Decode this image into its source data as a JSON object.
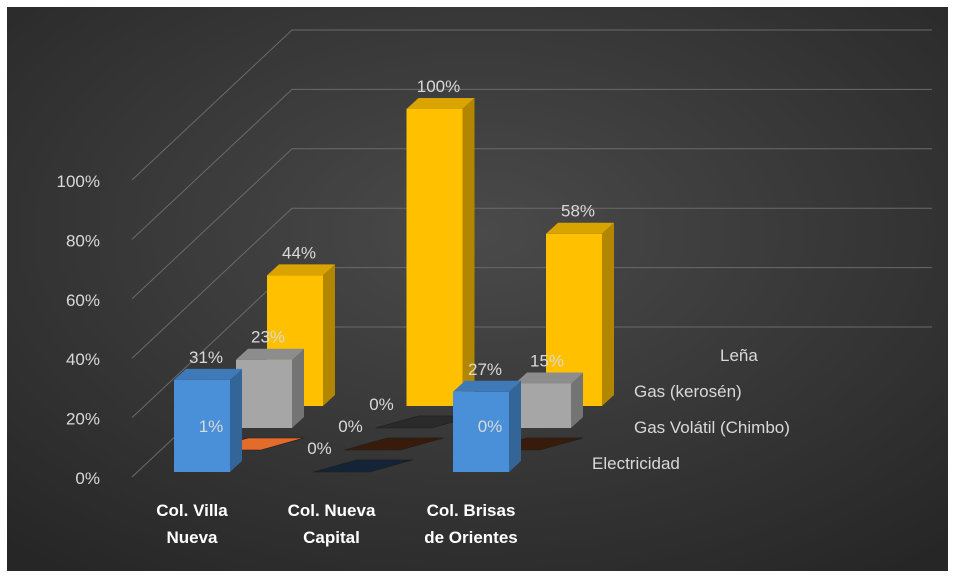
{
  "chart_data": {
    "type": "bar",
    "categories": [
      "Col. Villa Nueva",
      "Col. Nueva Capital",
      "Col. Brisas de Orientes"
    ],
    "category_lines": [
      [
        "Col. Villa",
        "Nueva"
      ],
      [
        "Col. Nueva",
        "Capital"
      ],
      [
        "Col. Brisas",
        "de Orientes"
      ]
    ],
    "series": [
      {
        "name": "Electricidad",
        "values": [
          31,
          0,
          27
        ],
        "labels": [
          "31%",
          "0%",
          "27%"
        ],
        "color": "#4a90d9"
      },
      {
        "name": "Gas Volátil (Chimbo)",
        "values": [
          1,
          0,
          0
        ],
        "labels": [
          "1%",
          "0%",
          "0%"
        ],
        "color": "#e36c2b"
      },
      {
        "name": "Gas (kerosén)",
        "values": [
          23,
          0,
          15
        ],
        "labels": [
          "23%",
          "0%",
          "15%"
        ],
        "color": "#a6a6a6"
      },
      {
        "name": "Leña",
        "values": [
          44,
          100,
          58
        ],
        "labels": [
          "44%",
          "100%",
          "58%"
        ],
        "color": "#ffc000"
      }
    ],
    "yticks": [
      "0%",
      "20%",
      "40%",
      "60%",
      "80%",
      "100%"
    ],
    "ylim": [
      0,
      100
    ],
    "title": "",
    "xlabel": "",
    "ylabel": "",
    "grid": true,
    "legend": "series labels along right depth axis",
    "background": "#3a3a3a"
  }
}
